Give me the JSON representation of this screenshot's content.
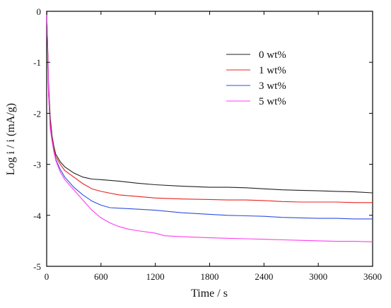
{
  "chart_data": {
    "type": "line",
    "title": "",
    "xlabel": "Time / s",
    "ylabel": "Log i / i (mA/g)",
    "xlim": [
      0,
      3600
    ],
    "ylim": [
      -5,
      0
    ],
    "xticks": [
      0,
      600,
      1200,
      1800,
      2400,
      3000,
      3600
    ],
    "xtick_labels": [
      "0",
      "600",
      "1200",
      "1800",
      "2400",
      "3000",
      "3600"
    ],
    "yticks": [
      0,
      -1,
      -2,
      -3,
      -4,
      -5
    ],
    "ytick_labels": [
      "0",
      "-1",
      "-2",
      "-3",
      "-4",
      "-5"
    ],
    "grid": false,
    "legend_position": "top-right",
    "series": [
      {
        "name": "0 wt%",
        "color": "#222222",
        "x": [
          0,
          10,
          20,
          40,
          60,
          80,
          100,
          150,
          200,
          300,
          400,
          500,
          600,
          800,
          1000,
          1200,
          1500,
          1800,
          2000,
          2200,
          2400,
          2600,
          2800,
          3000,
          3200,
          3400,
          3600
        ],
        "y": [
          0.0,
          -0.6,
          -1.4,
          -2.1,
          -2.45,
          -2.65,
          -2.8,
          -2.95,
          -3.05,
          -3.17,
          -3.25,
          -3.29,
          -3.3,
          -3.33,
          -3.37,
          -3.4,
          -3.43,
          -3.45,
          -3.45,
          -3.46,
          -3.48,
          -3.5,
          -3.51,
          -3.52,
          -3.53,
          -3.54,
          -3.56
        ]
      },
      {
        "name": "1 wt%",
        "color": "#e8231f",
        "x": [
          0,
          10,
          20,
          40,
          60,
          80,
          100,
          150,
          200,
          300,
          400,
          500,
          600,
          800,
          1000,
          1200,
          1500,
          1800,
          2000,
          2200,
          2400,
          2600,
          2800,
          3000,
          3200,
          3400,
          3600
        ],
        "y": [
          0.0,
          -0.65,
          -1.5,
          -2.2,
          -2.5,
          -2.7,
          -2.85,
          -3.0,
          -3.12,
          -3.25,
          -3.38,
          -3.48,
          -3.53,
          -3.6,
          -3.63,
          -3.66,
          -3.68,
          -3.69,
          -3.7,
          -3.7,
          -3.71,
          -3.73,
          -3.74,
          -3.74,
          -3.74,
          -3.75,
          -3.75
        ]
      },
      {
        "name": "3 wt%",
        "color": "#2e4fe0",
        "x": [
          0,
          10,
          20,
          40,
          60,
          80,
          100,
          150,
          200,
          300,
          400,
          500,
          600,
          700,
          800,
          1000,
          1200,
          1500,
          1800,
          2000,
          2200,
          2400,
          2600,
          2800,
          3000,
          3200,
          3400,
          3600
        ],
        "y": [
          0.0,
          -0.7,
          -1.6,
          -2.3,
          -2.55,
          -2.75,
          -2.9,
          -3.1,
          -3.25,
          -3.45,
          -3.6,
          -3.72,
          -3.8,
          -3.85,
          -3.86,
          -3.88,
          -3.9,
          -3.95,
          -3.98,
          -4.0,
          -4.01,
          -4.02,
          -4.04,
          -4.05,
          -4.06,
          -4.06,
          -4.07,
          -4.07
        ]
      },
      {
        "name": "5 wt%",
        "color": "#ff3cf0",
        "x": [
          0,
          10,
          20,
          40,
          60,
          80,
          100,
          150,
          200,
          300,
          400,
          500,
          600,
          700,
          800,
          900,
          1000,
          1200,
          1300,
          1500,
          1800,
          2000,
          2200,
          2400,
          2600,
          2800,
          3000,
          3200,
          3400,
          3600
        ],
        "y": [
          0.0,
          -0.7,
          -1.6,
          -2.3,
          -2.55,
          -2.75,
          -2.92,
          -3.15,
          -3.3,
          -3.5,
          -3.7,
          -3.9,
          -4.05,
          -4.15,
          -4.22,
          -4.27,
          -4.3,
          -4.35,
          -4.4,
          -4.42,
          -4.44,
          -4.45,
          -4.46,
          -4.47,
          -4.48,
          -4.49,
          -4.5,
          -4.51,
          -4.51,
          -4.52
        ]
      }
    ]
  }
}
